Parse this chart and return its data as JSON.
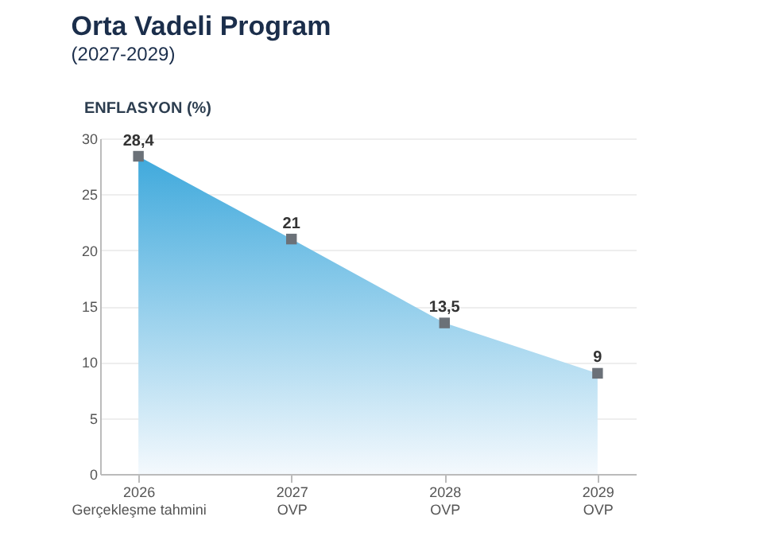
{
  "chart_data": {
    "type": "area",
    "title": "Orta Vadeli Program",
    "subtitle": "(2027-2029)",
    "ylabel": "ENFLASYON (%)",
    "categories": [
      "2026\nGerçekleşme tahmini",
      "2027\nOVP",
      "2028\nOVP",
      "2029\nOVP"
    ],
    "series": [
      {
        "color": "#3fa9dc",
        "values": [
          28.4,
          21,
          13.5,
          9
        ]
      }
    ],
    "value_labels": [
      "28,4",
      "21",
      "13,5",
      "9"
    ],
    "ylim": [
      0,
      30
    ],
    "yticks": [
      0,
      5,
      10,
      15,
      20,
      25,
      30
    ],
    "grid": "y",
    "marker": "square"
  }
}
